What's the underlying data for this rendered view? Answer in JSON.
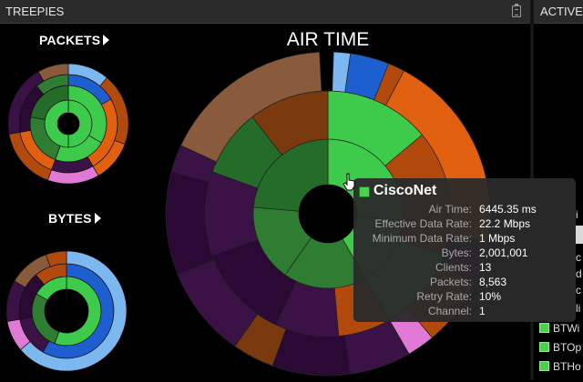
{
  "header": {
    "left_title": "TREEPIES",
    "right_title": "ACTIVE"
  },
  "icons": {
    "clipboard": "clipboard-icon",
    "cursor": "hand-pointer-icon"
  },
  "treepies": {
    "packets_label": "PACKETS",
    "bytes_label": "BYTES",
    "air_time_title": "AIR TIME"
  },
  "tooltip": {
    "title": "CiscoNet",
    "swatch_color": "#4cd14c",
    "rows": [
      {
        "label": "Air Time:",
        "value": "6445.35 ms"
      },
      {
        "label": "Effective Data Rate:",
        "value": "22.2 Mbps"
      },
      {
        "label": "Minimum Data Rate:",
        "value": "1 Mbps"
      },
      {
        "label": "Bytes:",
        "value": "2,001,001"
      },
      {
        "label": "Clients:",
        "value": "13"
      },
      {
        "label": "Packets:",
        "value": "8,563"
      },
      {
        "label": "Retry Rate:",
        "value": "10%"
      },
      {
        "label": "Channel:",
        "value": "1"
      }
    ]
  },
  "active_list": {
    "items": [
      "BTWi",
      "BTOp",
      "BTHo"
    ],
    "edge_fragments": [
      "i",
      "c",
      "d",
      "c",
      "li"
    ]
  },
  "colors": {
    "green": "#4cd14c",
    "dark_green": "#2e7d32",
    "orange": "#e8731c",
    "brown": "#8b4513",
    "purple": "#2a0a3a",
    "blue": "#1e5fcf",
    "light_blue": "#7db7f0"
  }
}
